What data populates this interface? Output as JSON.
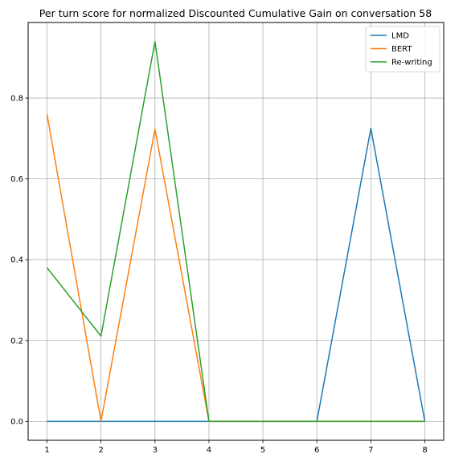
{
  "chart_data": {
    "type": "line",
    "title": "Per turn score for normalized Discounted Cumulative Gain on conversation 58",
    "xlabel": "",
    "ylabel": "",
    "x": [
      1,
      2,
      3,
      4,
      5,
      6,
      7,
      8
    ],
    "x_ticks": [
      "1",
      "2",
      "3",
      "4",
      "5",
      "6",
      "7",
      "8"
    ],
    "y_ticks": [
      "0.0",
      "0.2",
      "0.4",
      "0.6",
      "0.8"
    ],
    "y_tick_values": [
      0.0,
      0.2,
      0.4,
      0.6,
      0.8
    ],
    "xlim": [
      0.65,
      8.35
    ],
    "ylim": [
      -0.047,
      0.987
    ],
    "grid": true,
    "legend_position": "top-right",
    "series": [
      {
        "name": "LMD",
        "color": "#1f77b4",
        "values": [
          0.0,
          0.0,
          0.0,
          0.0,
          0.0,
          0.0,
          0.725,
          0.0
        ]
      },
      {
        "name": "BERT",
        "color": "#ff7f0e",
        "values": [
          0.76,
          0.0,
          0.723,
          0.0,
          0.0,
          0.0,
          0.0,
          0.0
        ]
      },
      {
        "name": "Re-writing",
        "color": "#2ca02c",
        "values": [
          0.38,
          0.211,
          0.94,
          0.0,
          0.0,
          0.0,
          0.0,
          0.0
        ]
      }
    ]
  }
}
